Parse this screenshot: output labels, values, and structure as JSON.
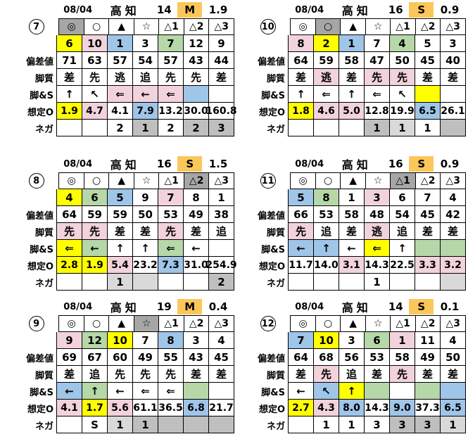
{
  "colors": {
    "yellow": "#ffff00",
    "pink": "#f2d3dc",
    "blue": "#9fc5e8",
    "green": "#b6d7a8",
    "gray": "#a6a6a6",
    "gray2": "#bfbfbf",
    "gray3": "#d9d9d9",
    "orange": "#fbc75b",
    "white": "#ffffff"
  },
  "row_labels": {
    "deviation": "偏差値",
    "style": "脚質",
    "leg": "脚&S",
    "odds": "想定O",
    "nega": "ネガ"
  },
  "tables": [
    {
      "index": "7",
      "header": {
        "date": "08/04",
        "track": "高知",
        "race": "14",
        "cls": "M",
        "value": "1.9"
      },
      "marks": [
        {
          "t": "◎",
          "bg": "gray"
        },
        {
          "t": "○"
        },
        {
          "t": "▲"
        },
        {
          "t": "☆"
        },
        {
          "t": "△1"
        },
        {
          "t": "△2"
        },
        {
          "t": "△3"
        }
      ],
      "numbers": [
        {
          "t": "6",
          "bg": "yellow"
        },
        {
          "t": "10",
          "bg": "pink"
        },
        {
          "t": "1",
          "bg": "blue"
        },
        {
          "t": "3"
        },
        {
          "t": "7",
          "bg": "green"
        },
        {
          "t": "12"
        },
        {
          "t": "9"
        }
      ],
      "deviation": [
        {
          "t": "71"
        },
        {
          "t": "63"
        },
        {
          "t": "57"
        },
        {
          "t": "54"
        },
        {
          "t": "57"
        },
        {
          "t": "43"
        },
        {
          "t": "44"
        }
      ],
      "style": [
        {
          "t": "差"
        },
        {
          "t": "先"
        },
        {
          "t": "逃"
        },
        {
          "t": "追"
        },
        {
          "t": "先"
        },
        {
          "t": "先"
        },
        {
          "t": "差"
        }
      ],
      "leg": [
        {
          "t": "↑"
        },
        {
          "t": "↖"
        },
        {
          "t": "⇐",
          "bg": "pink"
        },
        {
          "t": "←",
          "bg": "pink"
        },
        {
          "t": "⇐",
          "bg": "pink"
        },
        {
          "t": "",
          "bg": "blue"
        },
        {
          "t": ""
        }
      ],
      "odds": [
        {
          "t": "1.9",
          "bg": "yellow"
        },
        {
          "t": "4.7",
          "bg": "pink"
        },
        {
          "t": "4.1"
        },
        {
          "t": "7.9",
          "bg": "blue"
        },
        {
          "t": "13.2"
        },
        {
          "t": "30.0"
        },
        {
          "t": "160.8"
        }
      ],
      "nega": [
        {
          "t": ""
        },
        {
          "t": ""
        },
        {
          "t": "2"
        },
        {
          "t": "1",
          "bg": "gray2"
        },
        {
          "t": "2"
        },
        {
          "t": "2",
          "bg": "gray2"
        },
        {
          "t": "3",
          "bg": "gray2"
        }
      ]
    },
    {
      "index": "10",
      "header": {
        "date": "08/04",
        "track": "高知",
        "race": "16",
        "cls": "S",
        "value": "0.9"
      },
      "marks": [
        {
          "t": "◎"
        },
        {
          "t": "○",
          "bg": "gray"
        },
        {
          "t": "▲"
        },
        {
          "t": "☆"
        },
        {
          "t": "△1"
        },
        {
          "t": "△2"
        },
        {
          "t": "△3"
        }
      ],
      "numbers": [
        {
          "t": "8",
          "bg": "pink"
        },
        {
          "t": "2",
          "bg": "yellow"
        },
        {
          "t": "1",
          "bg": "blue"
        },
        {
          "t": "7"
        },
        {
          "t": "4",
          "bg": "green"
        },
        {
          "t": "5"
        },
        {
          "t": "3"
        }
      ],
      "deviation": [
        {
          "t": "64"
        },
        {
          "t": "59"
        },
        {
          "t": "58"
        },
        {
          "t": "47"
        },
        {
          "t": "50"
        },
        {
          "t": "45"
        },
        {
          "t": "40"
        }
      ],
      "style": [
        {
          "t": "差"
        },
        {
          "t": "逃",
          "bg": "pink"
        },
        {
          "t": "差"
        },
        {
          "t": "先",
          "bg": "pink"
        },
        {
          "t": "先",
          "bg": "pink"
        },
        {
          "t": "差"
        },
        {
          "t": "差"
        }
      ],
      "leg": [
        {
          "t": "↑"
        },
        {
          "t": "⇐"
        },
        {
          "t": "↑"
        },
        {
          "t": "⇐"
        },
        {
          "t": "↖"
        },
        {
          "t": "",
          "bg": "yellow"
        },
        {
          "t": ""
        }
      ],
      "odds": [
        {
          "t": "1.8",
          "bg": "yellow"
        },
        {
          "t": "4.6",
          "bg": "pink"
        },
        {
          "t": "5.0",
          "bg": "pink"
        },
        {
          "t": "12.8"
        },
        {
          "t": "19.9"
        },
        {
          "t": "6.5",
          "bg": "blue"
        },
        {
          "t": "26.1"
        }
      ],
      "nega": [
        {
          "t": ""
        },
        {
          "t": ""
        },
        {
          "t": ""
        },
        {
          "t": "1",
          "bg": "gray2"
        },
        {
          "t": "1",
          "bg": "gray3"
        },
        {
          "t": "1"
        },
        {
          "t": "",
          "bg": "gray2"
        }
      ]
    },
    {
      "index": "8",
      "header": {
        "date": "08/04",
        "track": "高知",
        "race": "16",
        "cls": "S",
        "value": "1.5"
      },
      "marks": [
        {
          "t": "◎"
        },
        {
          "t": "○"
        },
        {
          "t": "▲"
        },
        {
          "t": "☆"
        },
        {
          "t": "△1"
        },
        {
          "t": "△2",
          "bg": "gray"
        },
        {
          "t": "△3"
        }
      ],
      "numbers": [
        {
          "t": "4",
          "bg": "yellow"
        },
        {
          "t": "6",
          "bg": "green"
        },
        {
          "t": "5",
          "bg": "blue"
        },
        {
          "t": "9"
        },
        {
          "t": "7",
          "bg": "pink"
        },
        {
          "t": "8"
        },
        {
          "t": "1"
        }
      ],
      "deviation": [
        {
          "t": "64"
        },
        {
          "t": "59"
        },
        {
          "t": "59"
        },
        {
          "t": "50"
        },
        {
          "t": "53"
        },
        {
          "t": "49"
        },
        {
          "t": "38"
        }
      ],
      "style": [
        {
          "t": "先",
          "bg": "pink"
        },
        {
          "t": "先",
          "bg": "pink"
        },
        {
          "t": "差"
        },
        {
          "t": "差"
        },
        {
          "t": "先",
          "bg": "pink"
        },
        {
          "t": "差"
        },
        {
          "t": "追"
        }
      ],
      "leg": [
        {
          "t": "⇐",
          "bg": "yellow"
        },
        {
          "t": "←",
          "bg": "green"
        },
        {
          "t": "↑"
        },
        {
          "t": "↑"
        },
        {
          "t": "⇐",
          "bg": "green"
        },
        {
          "t": "←"
        },
        {
          "t": ""
        }
      ],
      "odds": [
        {
          "t": "2.8",
          "bg": "yellow"
        },
        {
          "t": "1.9",
          "bg": "yellow"
        },
        {
          "t": "5.4",
          "bg": "pink"
        },
        {
          "t": "23.2"
        },
        {
          "t": "7.3",
          "bg": "blue"
        },
        {
          "t": "31.0"
        },
        {
          "t": "254.9"
        }
      ],
      "nega": [
        {
          "t": ""
        },
        {
          "t": ""
        },
        {
          "t": "1",
          "bg": "gray3"
        },
        {
          "t": "",
          "bg": "gray3"
        },
        {
          "t": ""
        },
        {
          "t": ""
        },
        {
          "t": "2",
          "bg": "gray2"
        }
      ]
    },
    {
      "index": "11",
      "header": {
        "date": "08/04",
        "track": "高知",
        "race": "16",
        "cls": "S",
        "value": "0.9"
      },
      "marks": [
        {
          "t": "◎"
        },
        {
          "t": "○"
        },
        {
          "t": "▲"
        },
        {
          "t": "☆"
        },
        {
          "t": "△1",
          "bg": "gray"
        },
        {
          "t": "△2"
        },
        {
          "t": "△3"
        }
      ],
      "numbers": [
        {
          "t": "5",
          "bg": "blue"
        },
        {
          "t": "8",
          "bg": "green"
        },
        {
          "t": "1"
        },
        {
          "t": "3",
          "bg": "pink"
        },
        {
          "t": "6"
        },
        {
          "t": "7"
        },
        {
          "t": "4"
        }
      ],
      "deviation": [
        {
          "t": "66"
        },
        {
          "t": "53"
        },
        {
          "t": "58"
        },
        {
          "t": "48"
        },
        {
          "t": "54"
        },
        {
          "t": "45"
        },
        {
          "t": "42"
        }
      ],
      "style": [
        {
          "t": "先",
          "bg": "pink"
        },
        {
          "t": "追"
        },
        {
          "t": "差"
        },
        {
          "t": "逃",
          "bg": "pink"
        },
        {
          "t": "追"
        },
        {
          "t": "差"
        },
        {
          "t": "差"
        }
      ],
      "leg": [
        {
          "t": "←",
          "bg": "blue"
        },
        {
          "t": "↑",
          "bg": "blue"
        },
        {
          "t": "←"
        },
        {
          "t": "⇐",
          "bg": "yellow"
        },
        {
          "t": "↑"
        },
        {
          "t": "",
          "bg": "green"
        },
        {
          "t": "",
          "bg": "green"
        }
      ],
      "odds": [
        {
          "t": "11.7"
        },
        {
          "t": "14.0"
        },
        {
          "t": "3.1",
          "bg": "pink"
        },
        {
          "t": "14.3"
        },
        {
          "t": "22.5"
        },
        {
          "t": "3.3",
          "bg": "pink"
        },
        {
          "t": "3.2",
          "bg": "pink"
        }
      ],
      "nega": [
        {
          "t": ""
        },
        {
          "t": ""
        },
        {
          "t": ""
        },
        {
          "t": "1"
        },
        {
          "t": ""
        },
        {
          "t": ""
        },
        {
          "t": "",
          "bg": "gray3"
        }
      ]
    },
    {
      "index": "9",
      "header": {
        "date": "08/04",
        "track": "高知",
        "race": "19",
        "cls": "M",
        "value": "0.4"
      },
      "marks": [
        {
          "t": "◎"
        },
        {
          "t": "○"
        },
        {
          "t": "▲"
        },
        {
          "t": "☆",
          "bg": "gray"
        },
        {
          "t": "△1"
        },
        {
          "t": "△2"
        },
        {
          "t": "△3"
        }
      ],
      "numbers": [
        {
          "t": "9",
          "bg": "pink"
        },
        {
          "t": "12",
          "bg": "green"
        },
        {
          "t": "10",
          "bg": "yellow"
        },
        {
          "t": "7"
        },
        {
          "t": "8",
          "bg": "blue"
        },
        {
          "t": "3"
        },
        {
          "t": "4"
        }
      ],
      "deviation": [
        {
          "t": "69"
        },
        {
          "t": "67"
        },
        {
          "t": "60"
        },
        {
          "t": "49"
        },
        {
          "t": "55"
        },
        {
          "t": "43"
        },
        {
          "t": "45"
        }
      ],
      "style": [
        {
          "t": "差"
        },
        {
          "t": "追"
        },
        {
          "t": "先"
        },
        {
          "t": "先"
        },
        {
          "t": "先"
        },
        {
          "t": "差"
        },
        {
          "t": "差"
        }
      ],
      "leg": [
        {
          "t": "←",
          "bg": "blue"
        },
        {
          "t": "↑",
          "bg": "green"
        },
        {
          "t": "←"
        },
        {
          "t": "⇐"
        },
        {
          "t": "⇐"
        },
        {
          "t": "",
          "bg": "green"
        },
        {
          "t": ""
        }
      ],
      "odds": [
        {
          "t": "4.1",
          "bg": "pink"
        },
        {
          "t": "1.7",
          "bg": "yellow"
        },
        {
          "t": "5.6",
          "bg": "pink"
        },
        {
          "t": "61.1"
        },
        {
          "t": "36.5"
        },
        {
          "t": "6.8",
          "bg": "blue"
        },
        {
          "t": "21.7"
        }
      ],
      "nega": [
        {
          "t": ""
        },
        {
          "t": "S"
        },
        {
          "t": "1",
          "bg": "gray3"
        },
        {
          "t": "1",
          "bg": "gray2"
        },
        {
          "t": "",
          "bg": "gray2"
        },
        {
          "t": "",
          "bg": "gray2"
        },
        {
          "t": "",
          "bg": "gray2"
        }
      ]
    },
    {
      "index": "12",
      "header": {
        "date": "08/04",
        "track": "高知",
        "race": "14",
        "cls": "S",
        "value": "0.1"
      },
      "marks": [
        {
          "t": "◎"
        },
        {
          "t": "○"
        },
        {
          "t": "▲"
        },
        {
          "t": "☆"
        },
        {
          "t": "△1"
        },
        {
          "t": "△2"
        },
        {
          "t": "△3"
        }
      ],
      "numbers": [
        {
          "t": "7",
          "bg": "blue"
        },
        {
          "t": "10",
          "bg": "yellow"
        },
        {
          "t": "3"
        },
        {
          "t": "6",
          "bg": "green"
        },
        {
          "t": "1",
          "bg": "pink"
        },
        {
          "t": "11"
        },
        {
          "t": "4"
        }
      ],
      "deviation": [
        {
          "t": "64"
        },
        {
          "t": "68"
        },
        {
          "t": "56"
        },
        {
          "t": "53"
        },
        {
          "t": "58"
        },
        {
          "t": "49"
        },
        {
          "t": "50"
        }
      ],
      "style": [
        {
          "t": "差"
        },
        {
          "t": "先",
          "bg": "pink"
        },
        {
          "t": "追"
        },
        {
          "t": "差"
        },
        {
          "t": "先",
          "bg": "pink"
        },
        {
          "t": "差"
        },
        {
          "t": "差"
        }
      ],
      "leg": [
        {
          "t": "←"
        },
        {
          "t": "↖",
          "bg": "blue"
        },
        {
          "t": "↑",
          "bg": "yellow"
        },
        {
          "t": "",
          "bg": "green"
        },
        {
          "t": ""
        },
        {
          "t": "",
          "bg": "green"
        },
        {
          "t": "",
          "bg": "blue"
        }
      ],
      "odds": [
        {
          "t": "2.7",
          "bg": "yellow"
        },
        {
          "t": "4.3",
          "bg": "pink"
        },
        {
          "t": "8.0",
          "bg": "blue"
        },
        {
          "t": "14.3"
        },
        {
          "t": "9.0",
          "bg": "blue"
        },
        {
          "t": "37.3"
        },
        {
          "t": "6.5",
          "bg": "blue"
        }
      ],
      "nega": [
        {
          "t": ""
        },
        {
          "t": "1"
        },
        {
          "t": "1"
        },
        {
          "t": "3"
        },
        {
          "t": "3",
          "bg": "gray2"
        },
        {
          "t": "3",
          "bg": "gray2"
        },
        {
          "t": "1",
          "bg": "gray3"
        }
      ]
    }
  ]
}
